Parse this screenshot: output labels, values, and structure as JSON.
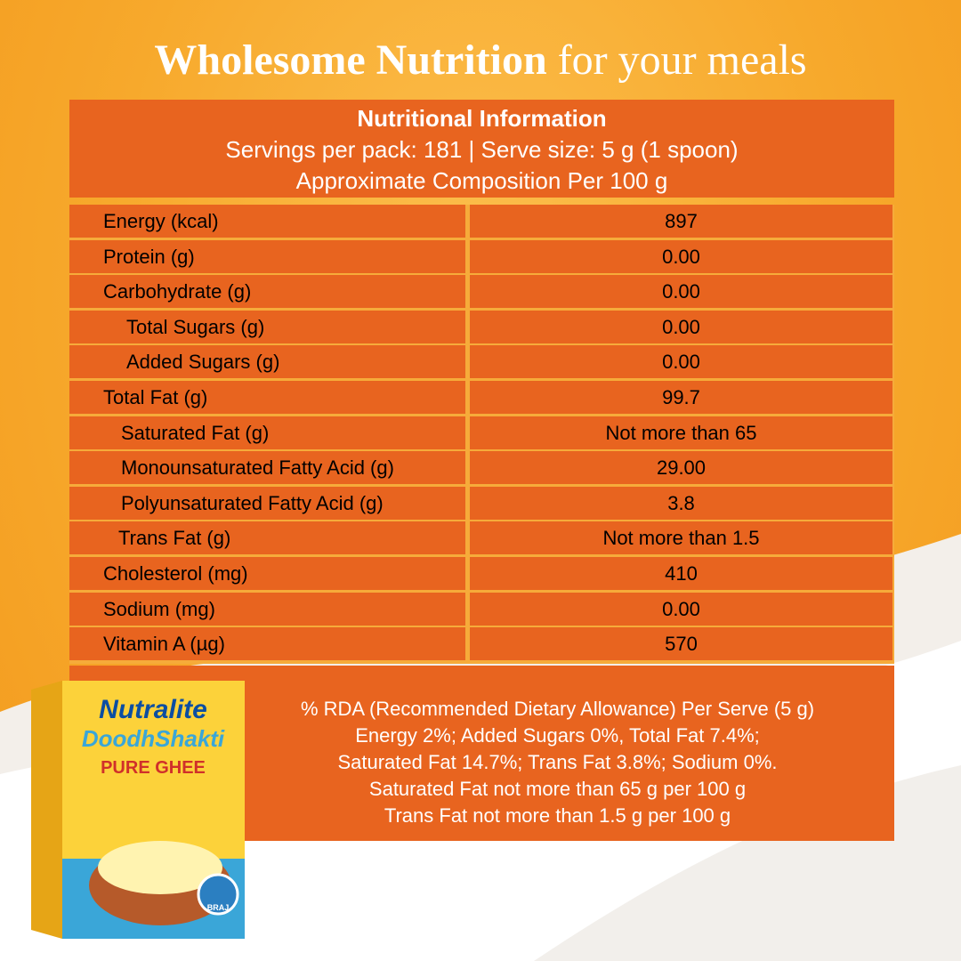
{
  "header": {
    "title_bold": "Wholesome Nutrition",
    "title_rest": "for your meals"
  },
  "table": {
    "heading": [
      "Nutritional Information",
      "Servings per pack: 181 | Serve size: 5 g (1 spoon)",
      "Approximate Composition Per 100 g"
    ],
    "rows": [
      [
        "Energy (kcal)",
        "897"
      ],
      [
        "Protein (g)",
        "0.00"
      ],
      [
        "Carbohydrate (g)",
        "0.00"
      ],
      [
        "Total Sugars (g)",
        "0.00"
      ],
      [
        "Added Sugars (g)",
        "0.00"
      ],
      [
        "Total Fat (g)",
        "99.7"
      ],
      [
        "Saturated Fat (g)",
        "Not more than 65"
      ],
      [
        "Monounsaturated Fatty Acid (g)",
        "29.00"
      ],
      [
        "Polyunsaturated Fatty Acid (g)",
        "3.8"
      ],
      [
        "Trans Fat (g)",
        "Not more than 1.5"
      ],
      [
        "Cholesterol (mg)",
        "410"
      ],
      [
        "Sodium (mg)",
        "0.00"
      ],
      [
        "Vitamin A (µg)",
        "570"
      ]
    ]
  },
  "footnote": [
    "% RDA (Recommended Dietary Allowance) Per Serve (5 g)",
    "Energy 2%; Added Sugars 0%, Total Fat 7.4%;",
    "Saturated Fat 14.7%; Trans Fat 3.8%; Sodium 0%.",
    "Saturated Fat not more than 65 g per 100 g",
    "Trans Fat not more than 1.5 g per 100 g"
  ],
  "product": {
    "brand": "Nutralite",
    "name": "DoodhShakti",
    "variant": "PURE GHEE",
    "badge": "BRAJ"
  }
}
